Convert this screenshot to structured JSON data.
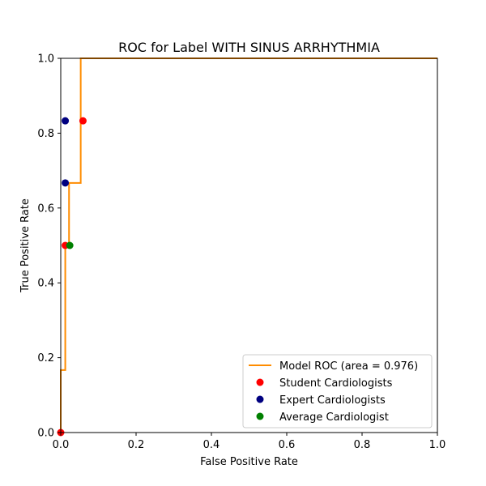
{
  "chart_data": {
    "type": "scatter",
    "title": "ROC for Label WITH SINUS ARRHYTHMIA",
    "xlabel": "False Positive Rate",
    "ylabel": "True Positive Rate",
    "xlim": [
      0.0,
      1.0
    ],
    "ylim": [
      0.0,
      1.0
    ],
    "x_ticks": [
      "0.0",
      "0.2",
      "0.4",
      "0.6",
      "0.8",
      "1.0"
    ],
    "y_ticks": [
      "0.0",
      "0.2",
      "0.4",
      "0.6",
      "0.8",
      "1.0"
    ],
    "grid": false,
    "legend_position": "lower-right",
    "line_series": {
      "name": "Model ROC (area = 0.976)",
      "color": "#ff8c00",
      "x": [
        0.0,
        0.0,
        0.012,
        0.012,
        0.022,
        0.022,
        0.047,
        0.047,
        0.053,
        0.053,
        1.0
      ],
      "y": [
        0.0,
        0.167,
        0.167,
        0.5,
        0.5,
        0.667,
        0.667,
        0.667,
        0.667,
        1.0,
        1.0
      ]
    },
    "scatter_series": [
      {
        "name": "Student Cardiologists",
        "color": "#ff0000",
        "points": [
          {
            "x": 0.0,
            "y": 0.0
          },
          {
            "x": 0.012,
            "y": 0.5
          },
          {
            "x": 0.059,
            "y": 0.833
          }
        ]
      },
      {
        "name": "Expert Cardiologists",
        "color": "#000080",
        "points": [
          {
            "x": 0.012,
            "y": 0.667
          },
          {
            "x": 0.012,
            "y": 0.833
          }
        ]
      },
      {
        "name": "Average Cardiologist",
        "color": "#008000",
        "points": [
          {
            "x": 0.024,
            "y": 0.5
          }
        ]
      }
    ]
  }
}
